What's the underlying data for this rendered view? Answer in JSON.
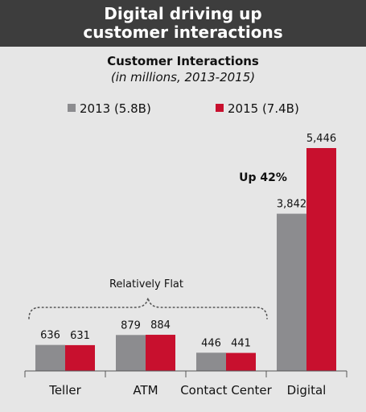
{
  "header": {
    "title": "Digital driving up\ncustomer interactions"
  },
  "colors": {
    "header_bg": "#3d3d3d",
    "background": "#e6e6e6",
    "series_2013": "#8c8c8f",
    "series_2015": "#c8102e"
  },
  "chart_data": {
    "type": "bar",
    "title": "Customer Interactions",
    "subtitle": "(in millions, 2013-2015)",
    "categories": [
      "Teller",
      "ATM",
      "Contact Center",
      "Digital"
    ],
    "series": [
      {
        "name": "2013 (5.8B)",
        "values": [
          636,
          879,
          446,
          3842
        ],
        "labels": [
          "636",
          "879",
          "446",
          "3,842"
        ]
      },
      {
        "name": "2015 (7.4B)",
        "values": [
          631,
          884,
          441,
          5446
        ],
        "labels": [
          "631",
          "884",
          "441",
          "5,446"
        ]
      }
    ],
    "ylim": [
      0,
      5446
    ],
    "legend_position": "top",
    "grid": false,
    "annotations": {
      "flat": "Relatively Flat",
      "growth": "Up 42%"
    }
  }
}
